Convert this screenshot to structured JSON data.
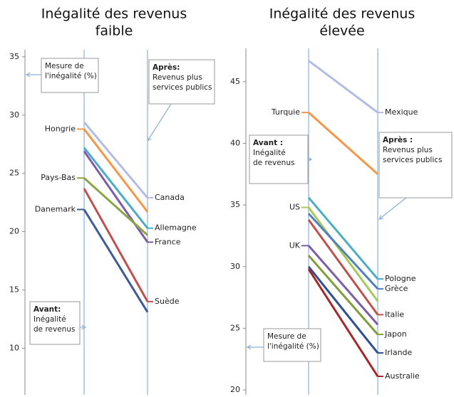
{
  "chart_data": [
    {
      "type": "line",
      "title": [
        "Inégalité des revenus",
        "faible"
      ],
      "ylim": [
        6,
        35.6
      ],
      "yticks": [
        10,
        15,
        20,
        25,
        30,
        35
      ],
      "annotations": [
        [
          "Mesure de",
          "l'inégalité (%)"
        ],
        [
          "Après:",
          "Revenus plus",
          "services publics"
        ],
        [
          "Avant:",
          "Inégalité",
          "de revenus"
        ]
      ],
      "series": [
        {
          "color": "#b3bde3",
          "values": [
            29.4,
            22.9
          ],
          "right_label": "Canada"
        },
        {
          "color": "#f79646",
          "values": [
            28.8,
            21.7
          ],
          "left_label": "Hongrie"
        },
        {
          "color": "#4bacc6",
          "values": [
            27.2,
            20.3
          ],
          "right_label": "Allemagne"
        },
        {
          "color": "#7b5ea7",
          "values": [
            26.9,
            19.1
          ],
          "right_label": "France"
        },
        {
          "color": "#8aa544",
          "values": [
            24.6,
            19.7
          ],
          "left_label": "Pays-Bas"
        },
        {
          "color": "#c0504d",
          "values": [
            23.7,
            14.0
          ],
          "right_label": "Suède"
        },
        {
          "color": "#3d5a99",
          "values": [
            21.9,
            13.1
          ],
          "left_label": "Danemark"
        }
      ]
    },
    {
      "type": "line",
      "title": [
        "Inégalité des revenus",
        "élevée"
      ],
      "ylim": [
        19.6,
        47.7
      ],
      "yticks": [
        20,
        25,
        30,
        35,
        40,
        45
      ],
      "annotations": [
        [
          "Avant :",
          "Inégalité",
          "de revenus"
        ],
        [
          "Après :",
          "Revenus plus",
          "services publics"
        ],
        [
          "Mesure de",
          "l'inégalité (%)"
        ]
      ],
      "series": [
        {
          "color": "#b3bde3",
          "values": [
            46.7,
            42.5
          ],
          "right_label": "Mexique"
        },
        {
          "color": "#f79646",
          "values": [
            42.5,
            37.5
          ],
          "left_label": "Turquie"
        },
        {
          "color": "#4bacc6",
          "values": [
            35.6,
            29.0
          ],
          "right_label": "Pologne"
        },
        {
          "color": "#a8c95a",
          "values": [
            34.8,
            27.2
          ],
          "left_label": "US"
        },
        {
          "color": "#4f81bd",
          "values": [
            34.3,
            28.2
          ],
          "right_label": "Grèce"
        },
        {
          "color": "#c0504d",
          "values": [
            33.8,
            26.1
          ],
          "right_label": "Italie"
        },
        {
          "color": "#7b5ea7",
          "values": [
            31.7,
            25.3
          ],
          "left_label": "UK"
        },
        {
          "color": "#7f9f3a",
          "values": [
            30.9,
            24.5
          ],
          "right_label": "Japon"
        },
        {
          "color": "#2f4f8f",
          "values": [
            30.0,
            23.0
          ],
          "right_label": "Irlande"
        },
        {
          "color": "#a5282a",
          "values": [
            29.8,
            21.1
          ],
          "right_label": "Australie"
        }
      ]
    }
  ]
}
